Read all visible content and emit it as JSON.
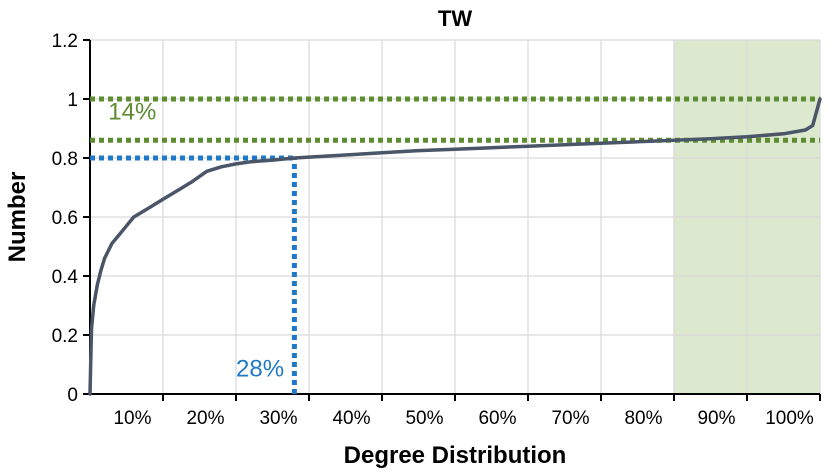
{
  "chart_data": {
    "type": "line",
    "title": "TW",
    "xlabel": "Degree Distribution",
    "ylabel": "Number",
    "xlim": [
      0,
      1
    ],
    "ylim": [
      0,
      1.2
    ],
    "x_ticks": [
      "10%",
      "20%",
      "30%",
      "40%",
      "50%",
      "60%",
      "70%",
      "80%",
      "90%",
      "100%"
    ],
    "y_ticks": [
      "0",
      "0.2",
      "0.4",
      "0.6",
      "0.8",
      "1",
      "1.2"
    ],
    "grid": true,
    "series": [
      {
        "color": "#4a5568",
        "x": [
          0.0,
          0.002,
          0.005,
          0.01,
          0.015,
          0.02,
          0.03,
          0.04,
          0.05,
          0.06,
          0.08,
          0.1,
          0.12,
          0.14,
          0.16,
          0.18,
          0.2,
          0.22,
          0.25,
          0.28,
          0.3,
          0.35,
          0.4,
          0.45,
          0.5,
          0.55,
          0.6,
          0.65,
          0.7,
          0.75,
          0.8,
          0.85,
          0.9,
          0.95,
          0.98,
          0.99,
          1.0
        ],
        "y": [
          0.0,
          0.22,
          0.3,
          0.37,
          0.42,
          0.46,
          0.51,
          0.54,
          0.57,
          0.6,
          0.63,
          0.66,
          0.69,
          0.72,
          0.755,
          0.77,
          0.78,
          0.787,
          0.793,
          0.8,
          0.803,
          0.81,
          0.818,
          0.825,
          0.83,
          0.835,
          0.84,
          0.845,
          0.85,
          0.855,
          0.86,
          0.865,
          0.872,
          0.882,
          0.895,
          0.91,
          1.0
        ]
      }
    ],
    "shaded_region": {
      "x_start": 0.8,
      "x_end": 1.0,
      "color": "#dce9cf"
    },
    "reference_lines": {
      "green_h1": {
        "y": 1.0,
        "x_start": 0,
        "x_end": 1.0,
        "color": "#5e8c31"
      },
      "green_h2": {
        "y": 0.86,
        "x_start": 0,
        "x_end": 1.0,
        "color": "#5e8c31"
      },
      "blue_h": {
        "y": 0.8,
        "x_start": 0,
        "x_end": 0.28,
        "color": "#1f78c8"
      },
      "blue_v": {
        "x": 0.28,
        "y_start": 0,
        "y_end": 0.8,
        "color": "#1f78c8"
      }
    },
    "annotations": [
      {
        "text": "14%",
        "x": 0.025,
        "y": 0.93,
        "color": "#5e8c31"
      },
      {
        "text": "28%",
        "x": 0.2,
        "y": 0.06,
        "color": "#1f78c8"
      }
    ]
  }
}
